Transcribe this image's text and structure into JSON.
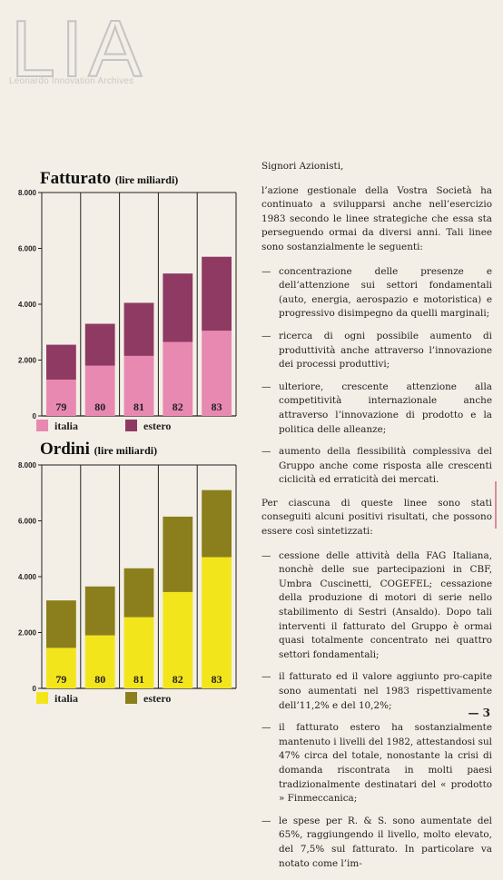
{
  "logo": {
    "text": "LIA",
    "subtitle": "Leonardo Innovation Archives"
  },
  "chart_data": [
    {
      "type": "bar",
      "title": "Fatturato",
      "unit": "(lire miliardi)",
      "categories": [
        "79",
        "80",
        "81",
        "82",
        "83"
      ],
      "series": [
        {
          "name": "italia",
          "values": [
            1300,
            1800,
            2150,
            2650,
            3050
          ]
        },
        {
          "name": "estero",
          "values": [
            1250,
            1500,
            1900,
            2450,
            2650
          ]
        }
      ],
      "y_ticks": [
        "8.000",
        "6.000",
        "4.000",
        "2.000",
        "0"
      ],
      "ylim": [
        0,
        8000
      ],
      "colors": {
        "italia": "#e889b1",
        "estero": "#8e3a63"
      }
    },
    {
      "type": "bar",
      "title": "Ordini",
      "unit": "(lire miliardi)",
      "categories": [
        "79",
        "80",
        "81",
        "82",
        "83"
      ],
      "series": [
        {
          "name": "italia",
          "values": [
            1450,
            1900,
            2550,
            3450,
            4700
          ]
        },
        {
          "name": "estero",
          "values": [
            1700,
            1750,
            1750,
            2700,
            2400
          ]
        }
      ],
      "y_ticks": [
        "8.000",
        "6.000",
        "4.000",
        "2.000",
        "0"
      ],
      "ylim": [
        0,
        8000
      ],
      "colors": {
        "italia": "#f3e51c",
        "estero": "#8a7f1c"
      }
    }
  ],
  "text": {
    "greeting": "Signori Azionisti,",
    "intro": "l’azione gestionale della Vostra Società ha continuato a svilupparsi anche nell’esercizio 1983 secondo le linee strategiche che essa sta perseguendo ormai da diversi anni. Tali linee sono sostanzialmente le seguenti:",
    "lines": [
      "concentrazione delle presenze e dell’attenzione sui settori fondamentali (auto, energia, aerospazio e motoristica) e progressivo disimpegno da quelli marginali;",
      "ricerca di ogni possibile aumento di produttività anche attraverso l’innovazione dei processi produttivi;",
      "ulteriore, crescente attenzione alla competitività internazionale anche attraverso l’innovazione di prodotto e la politica delle alleanze;",
      "aumento della flessibilità complessiva del Gruppo anche come risposta alle crescenti ciclicità ed erraticità dei mercati."
    ],
    "results_intro": "Per ciascuna di queste linee sono stati conseguiti alcuni positivi risultati, che possono essere così sintetizzati:",
    "results": [
      "cessione delle attività della FAG Italiana, nonchè delle sue partecipazioni in CBF, Umbra Cuscinetti, COGEFEL; cessazione della produzione di motori di serie nello stabilimento di Sestri (Ansaldo). Dopo tali interventi il fatturato del Gruppo è ormai quasi totalmente concentrato nei quattro settori fondamentali;",
      "il fatturato ed il valore aggiunto pro-capite sono aumentati nel 1983 rispettivamente dell’11,2% e del 10,2%;",
      "il fatturato estero ha sostanzialmente mantenuto i livelli del 1982, attestandosi sul 47% circa del totale, nonostante la crisi di domanda riscontrata in molti paesi tradizionalmente destinatari del « prodotto » Finmeccanica;",
      "le spese per R. & S. sono aumentate del 65%, raggiungendo il livello, molto elevato, del 7,5% sul fatturato. In particolare va notato come l’im-"
    ]
  },
  "page_number": "— 3"
}
